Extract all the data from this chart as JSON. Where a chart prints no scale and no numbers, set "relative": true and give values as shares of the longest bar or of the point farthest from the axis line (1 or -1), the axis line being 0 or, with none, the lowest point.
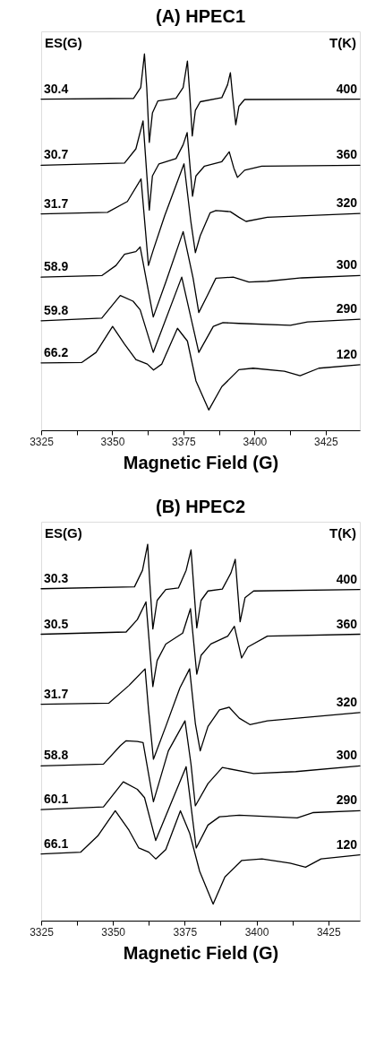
{
  "chart_data": [
    {
      "type": "line",
      "title": "(A) HPEC1",
      "xlabel": "Magnetic Field (G)",
      "relative": true,
      "xlim": [
        3325,
        3437
      ],
      "xticks": [
        3325,
        {
          "value": 3337.5,
          "label": null
        },
        3350,
        {
          "value": 3362.5,
          "label": null
        },
        3375,
        {
          "value": 3387.5,
          "label": null
        },
        3400,
        {
          "value": 3412.5,
          "label": null
        },
        3425
      ],
      "grid": false,
      "legend_title": "T(K)",
      "annotations": [
        "ES(G)",
        {
          "text": "30.4",
          "y": 0.88
        },
        {
          "text": "30.7",
          "y": 0.704
        },
        {
          "text": "31.7",
          "y": 0.575
        },
        {
          "text": "58.9",
          "y": 0.407
        },
        {
          "text": "59.8",
          "y": 0.291
        },
        {
          "text": "66.2",
          "y": 0.179
        }
      ],
      "series": [
        {
          "name": "400",
          "color": "#000000",
          "x": [
            3325,
            3357.5,
            3360,
            3361.3,
            3362.1,
            3363,
            3364.1,
            3366,
            3372.4,
            3374.9,
            3376.4,
            3377.2,
            3378.1,
            3379.2,
            3380.9,
            3388.5,
            3390.5,
            3391.5,
            3392.3,
            3393.4,
            3394.5,
            3396.5,
            3437
          ],
          "values": [
            0.88,
            0.882,
            0.911,
            1.0,
            0.911,
            0.765,
            0.843,
            0.875,
            0.882,
            0.911,
            0.981,
            0.896,
            0.782,
            0.85,
            0.873,
            0.884,
            0.918,
            0.95,
            0.888,
            0.812,
            0.861,
            0.879,
            0.88
          ]
        },
        {
          "name": "360",
          "color": "#000000",
          "x": [
            3325,
            3354.3,
            3358.3,
            3360.8,
            3363,
            3364.1,
            3366.4,
            3372.4,
            3374.9,
            3376.3,
            3378.2,
            3379.4,
            3382.4,
            3388.5,
            3391.1,
            3392.7,
            3394,
            3396.5,
            3402.5,
            3437
          ],
          "values": [
            0.704,
            0.71,
            0.748,
            0.822,
            0.585,
            0.676,
            0.708,
            0.722,
            0.759,
            0.791,
            0.622,
            0.676,
            0.702,
            0.714,
            0.74,
            0.697,
            0.672,
            0.691,
            0.702,
            0.704
          ]
        },
        {
          "name": "320",
          "color": "#000000",
          "x": [
            3325,
            3348.3,
            3355.3,
            3360.1,
            3362.7,
            3364.4,
            3368.4,
            3375.2,
            3377.6,
            3379.2,
            3380.9,
            3384.4,
            3386.4,
            3391.5,
            3394.5,
            3397,
            3404.5,
            3437
          ],
          "values": [
            0.575,
            0.579,
            0.608,
            0.668,
            0.438,
            0.479,
            0.57,
            0.708,
            0.555,
            0.472,
            0.517,
            0.578,
            0.584,
            0.581,
            0.566,
            0.555,
            0.566,
            0.576
          ]
        },
        {
          "name": "300",
          "color": "#000000",
          "x": [
            3325,
            3346.3,
            3351.3,
            3354.3,
            3358.3,
            3359.8,
            3364.4,
            3368.9,
            3374.9,
            3378.4,
            3380.4,
            3383.4,
            3386.4,
            3392.5,
            3398,
            3404.5,
            3416.6,
            3437
          ],
          "values": [
            0.407,
            0.411,
            0.438,
            0.468,
            0.475,
            0.487,
            0.301,
            0.396,
            0.528,
            0.404,
            0.313,
            0.358,
            0.404,
            0.407,
            0.394,
            0.396,
            0.405,
            0.411
          ]
        },
        {
          "name": "290",
          "color": "#000000",
          "x": [
            3325,
            3346.3,
            3352.8,
            3357.3,
            3359.8,
            3364.4,
            3374.4,
            3380.4,
            3385.5,
            3388.9,
            3394.5,
            3412.6,
            3418.6,
            3437
          ],
          "values": [
            0.291,
            0.298,
            0.358,
            0.343,
            0.32,
            0.207,
            0.407,
            0.207,
            0.276,
            0.286,
            0.284,
            0.279,
            0.288,
            0.295
          ]
        },
        {
          "name": "120",
          "color": "#000000",
          "x": [
            3325,
            3339.2,
            3344.3,
            3350.1,
            3354.3,
            3358.3,
            3362.3,
            3364.5,
            3367.4,
            3372.9,
            3376.4,
            3379.4,
            3383.9,
            3388.5,
            3394.5,
            3399.5,
            3410.5,
            3416,
            3422.6,
            3437
          ],
          "values": [
            0.179,
            0.18,
            0.207,
            0.276,
            0.229,
            0.188,
            0.176,
            0.16,
            0.176,
            0.271,
            0.237,
            0.131,
            0.054,
            0.116,
            0.161,
            0.165,
            0.157,
            0.145,
            0.165,
            0.174
          ]
        }
      ]
    },
    {
      "type": "line",
      "title": "(B) HPEC2",
      "xlabel": "Magnetic Field (G)",
      "relative": true,
      "xlim": [
        3325,
        3436
      ],
      "xticks": [
        3325,
        {
          "value": 3337.5,
          "label": null
        },
        3350,
        {
          "value": 3362.5,
          "label": null
        },
        3375,
        {
          "value": 3387.5,
          "label": null
        },
        3400,
        {
          "value": 3412.5,
          "label": null
        },
        3425
      ],
      "grid": false,
      "legend_title": "T(K)",
      "annotations": [
        "ES(G)",
        {
          "text": "30.3",
          "y": 0.882
        },
        {
          "text": "30.5",
          "y": 0.761
        },
        {
          "text": "31.7",
          "y": 0.575
        },
        {
          "text": "58.8",
          "y": 0.411
        },
        {
          "text": "60.1",
          "y": 0.295
        },
        {
          "text": "66.1",
          "y": 0.177
        }
      ],
      "series": [
        {
          "name": "400",
          "color": "#000000",
          "x": [
            3325,
            3357.5,
            3360.3,
            3362.1,
            3362.8,
            3363.9,
            3365.4,
            3368.4,
            3372.8,
            3375.5,
            3377.2,
            3379.2,
            3380.7,
            3383.1,
            3388.1,
            3391.1,
            3392.6,
            3394.3,
            3396,
            3399,
            3436
          ],
          "values": [
            0.882,
            0.887,
            0.931,
            1.0,
            0.902,
            0.775,
            0.851,
            0.88,
            0.884,
            0.931,
            0.985,
            0.778,
            0.851,
            0.876,
            0.881,
            0.924,
            0.96,
            0.794,
            0.858,
            0.876,
            0.88
          ]
        },
        {
          "name": "360",
          "color": "#000000",
          "x": [
            3325,
            3354.6,
            3358.5,
            3361.5,
            3363.9,
            3365.4,
            3368.4,
            3374.3,
            3377,
            3379.2,
            3380.7,
            3384.1,
            3390,
            3392.3,
            3394.8,
            3397,
            3403.8,
            3436
          ],
          "values": [
            0.761,
            0.767,
            0.8,
            0.847,
            0.622,
            0.691,
            0.735,
            0.764,
            0.829,
            0.655,
            0.705,
            0.735,
            0.756,
            0.782,
            0.698,
            0.727,
            0.756,
            0.761
          ]
        },
        {
          "name": "320",
          "color": "#000000",
          "x": [
            3325,
            3348.6,
            3355.6,
            3361.2,
            3362.4,
            3364.1,
            3368.4,
            3373.3,
            3376.7,
            3378.7,
            3380.4,
            3383.1,
            3387.1,
            3390.5,
            3394,
            3397.7,
            3403.8,
            3436
          ],
          "values": [
            0.575,
            0.578,
            0.625,
            0.669,
            0.56,
            0.429,
            0.516,
            0.618,
            0.669,
            0.524,
            0.451,
            0.516,
            0.56,
            0.567,
            0.538,
            0.521,
            0.531,
            0.553
          ]
        },
        {
          "name": "300",
          "color": "#000000",
          "x": [
            3325,
            3346.7,
            3352.6,
            3354.6,
            3358.5,
            3360.5,
            3364.1,
            3369.3,
            3375.1,
            3377.2,
            3378.7,
            3383.1,
            3388.1,
            3399,
            3413.7,
            3436
          ],
          "values": [
            0.411,
            0.416,
            0.465,
            0.478,
            0.476,
            0.473,
            0.316,
            0.451,
            0.531,
            0.415,
            0.305,
            0.364,
            0.407,
            0.391,
            0.396,
            0.411
          ]
        },
        {
          "name": "290",
          "color": "#000000",
          "x": [
            3325,
            3346.7,
            3353.6,
            3358.5,
            3361,
            3364.9,
            3370.3,
            3375.5,
            3379,
            3383.1,
            3387.1,
            3394,
            3414.2,
            3419.6,
            3436
          ],
          "values": [
            0.295,
            0.302,
            0.369,
            0.349,
            0.327,
            0.213,
            0.313,
            0.409,
            0.193,
            0.254,
            0.276,
            0.28,
            0.273,
            0.287,
            0.292
          ]
        },
        {
          "name": "120",
          "color": "#000000",
          "x": [
            3325,
            3338.8,
            3344.7,
            3350.8,
            3355.6,
            3359,
            3362.5,
            3364.9,
            3368.4,
            3373.5,
            3376.7,
            3380.2,
            3384.9,
            3389,
            3394.9,
            3401.9,
            3411.7,
            3417.1,
            3422.5,
            3436
          ],
          "values": [
            0.177,
            0.182,
            0.225,
            0.292,
            0.24,
            0.193,
            0.182,
            0.164,
            0.189,
            0.292,
            0.233,
            0.131,
            0.044,
            0.116,
            0.16,
            0.164,
            0.153,
            0.142,
            0.164,
            0.175
          ]
        }
      ]
    }
  ]
}
